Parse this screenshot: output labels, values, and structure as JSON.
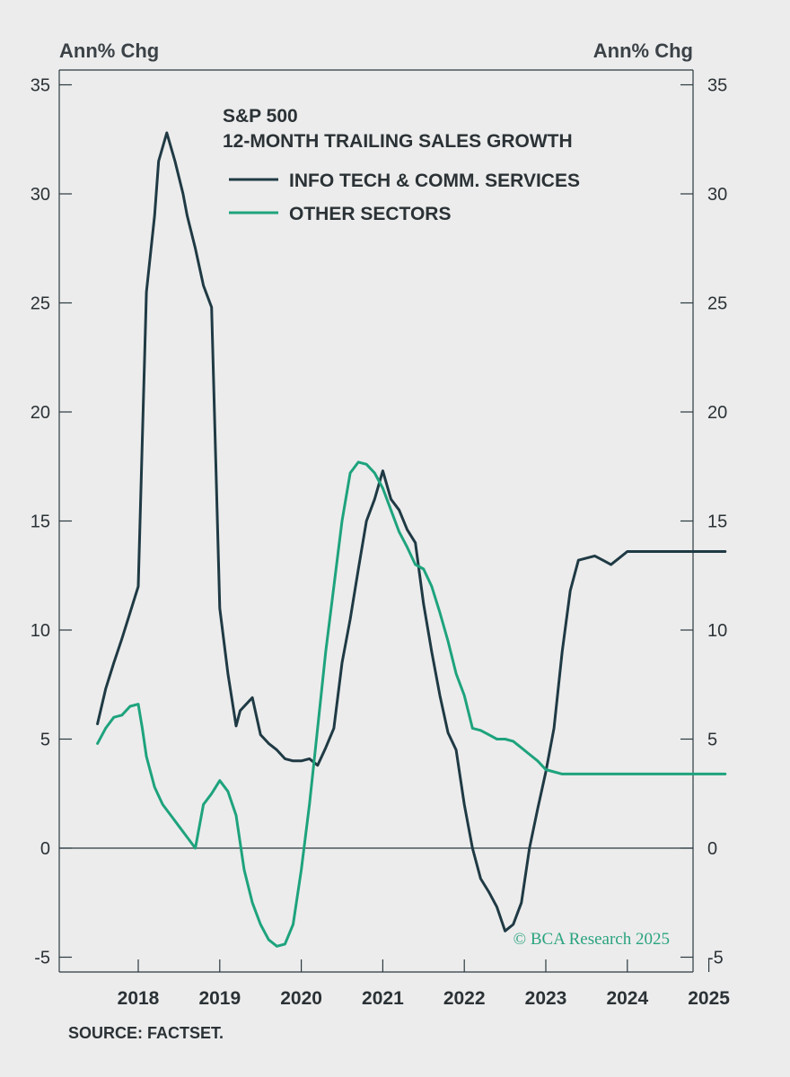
{
  "colors": {
    "background": "#ececec",
    "axis": "#2b3a40",
    "series_tech": "#1f3a44",
    "series_other": "#1ea37d"
  },
  "chart_data": {
    "type": "line",
    "title": "S&P 500",
    "subtitle": "12-MONTH TRAILING SALES GROWTH",
    "ylabel_left": "Ann% Chg",
    "ylabel_right": "Ann% Chg",
    "ylim": [
      -5,
      35
    ],
    "yticks": [
      -5,
      0,
      5,
      10,
      15,
      20,
      25,
      30,
      35
    ],
    "xlim": [
      2017.5,
      2025.5
    ],
    "xticks": [
      2018,
      2019,
      2020,
      2021,
      2022,
      2023,
      2024,
      2025
    ],
    "legend_position": "top-center",
    "source": "SOURCE: FACTSET.",
    "copyright": "© BCA Research 2025",
    "series": [
      {
        "name": "INFO TECH & COMM. SERVICES",
        "color": "#1f3a44",
        "x": [
          2017.5,
          2017.6,
          2017.7,
          2017.8,
          2017.9,
          2018.0,
          2018.1,
          2018.2,
          2018.25,
          2018.35,
          2018.45,
          2018.55,
          2018.6,
          2018.7,
          2018.8,
          2018.9,
          2019.0,
          2019.1,
          2019.2,
          2019.25,
          2019.3,
          2019.4,
          2019.5,
          2019.6,
          2019.7,
          2019.8,
          2019.9,
          2020.0,
          2020.1,
          2020.2,
          2020.3,
          2020.4,
          2020.5,
          2020.6,
          2020.7,
          2020.8,
          2020.9,
          2021.0,
          2021.1,
          2021.2,
          2021.3,
          2021.4,
          2021.5,
          2021.6,
          2021.7,
          2021.8,
          2021.9,
          2022.0,
          2022.1,
          2022.2,
          2022.3,
          2022.4,
          2022.5,
          2022.6,
          2022.7,
          2022.8,
          2022.9,
          2023.0,
          2023.1,
          2023.2,
          2023.3,
          2023.4,
          2023.5,
          2023.6,
          2023.7,
          2023.8,
          2023.9,
          2024.0,
          2024.1,
          2024.2,
          2024.3,
          2024.4,
          2024.5,
          2024.6,
          2024.7,
          2024.8,
          2024.9,
          2025.0,
          2025.1,
          2025.2
        ],
        "y": [
          5.7,
          7.3,
          8.5,
          9.6,
          10.8,
          12.0,
          25.5,
          29.0,
          31.5,
          32.8,
          31.5,
          30.0,
          29.0,
          27.5,
          25.8,
          24.8,
          11.0,
          8.0,
          5.6,
          6.3,
          6.5,
          6.9,
          5.2,
          4.8,
          4.5,
          4.1,
          4.0,
          4.0,
          4.1,
          3.8,
          4.6,
          5.5,
          8.5,
          10.5,
          12.8,
          15.0,
          16.0,
          17.3,
          16.0,
          15.5,
          14.6,
          14.0,
          11.2,
          9.0,
          7.0,
          5.3,
          4.5,
          2.0,
          0.0,
          -1.4,
          -2.0,
          -2.7,
          -3.8,
          -3.5,
          -2.5,
          0.0,
          1.8,
          3.5,
          5.5,
          9.0,
          11.8,
          13.2,
          13.3,
          13.4,
          13.2,
          13.0,
          13.3,
          13.6,
          13.6,
          13.6,
          13.6,
          13.6,
          13.6,
          13.6,
          13.6,
          13.6,
          13.6,
          13.6,
          13.6,
          13.6
        ]
      },
      {
        "name": "OTHER SECTORS",
        "color": "#1ea37d",
        "x": [
          2017.5,
          2017.6,
          2017.7,
          2017.8,
          2017.9,
          2018.0,
          2018.05,
          2018.1,
          2018.2,
          2018.3,
          2018.4,
          2018.5,
          2018.6,
          2018.7,
          2018.8,
          2018.9,
          2019.0,
          2019.1,
          2019.2,
          2019.3,
          2019.4,
          2019.5,
          2019.6,
          2019.7,
          2019.8,
          2019.9,
          2020.0,
          2020.1,
          2020.2,
          2020.3,
          2020.4,
          2020.5,
          2020.6,
          2020.7,
          2020.8,
          2020.9,
          2021.0,
          2021.1,
          2021.2,
          2021.3,
          2021.4,
          2021.5,
          2021.6,
          2021.7,
          2021.8,
          2021.9,
          2022.0,
          2022.1,
          2022.2,
          2022.3,
          2022.4,
          2022.5,
          2022.6,
          2022.7,
          2022.8,
          2022.9,
          2023.0,
          2023.1,
          2023.2,
          2023.3,
          2023.4,
          2023.5,
          2023.6,
          2023.7,
          2023.8,
          2023.9,
          2024.0,
          2024.1,
          2024.2,
          2024.3,
          2024.4,
          2024.5,
          2024.6,
          2024.7,
          2024.8,
          2024.9,
          2025.0,
          2025.1,
          2025.2
        ],
        "y": [
          4.8,
          5.5,
          6.0,
          6.1,
          6.5,
          6.6,
          5.5,
          4.2,
          2.8,
          2.0,
          1.5,
          1.0,
          0.5,
          0.0,
          2.0,
          2.5,
          3.1,
          2.6,
          1.5,
          -1.0,
          -2.5,
          -3.5,
          -4.2,
          -4.5,
          -4.4,
          -3.5,
          -1.0,
          2.0,
          5.5,
          9.0,
          12.0,
          15.0,
          17.2,
          17.7,
          17.6,
          17.2,
          16.5,
          15.5,
          14.5,
          13.8,
          13.0,
          12.8,
          12.0,
          10.8,
          9.5,
          8.0,
          7.0,
          5.5,
          5.4,
          5.2,
          5.0,
          5.0,
          4.9,
          4.6,
          4.3,
          4.0,
          3.6,
          3.5,
          3.4,
          3.4,
          3.4,
          3.4,
          3.4,
          3.4,
          3.4,
          3.4,
          3.4,
          3.4,
          3.4,
          3.4,
          3.4,
          3.4,
          3.4,
          3.4,
          3.4,
          3.4,
          3.4,
          3.4,
          3.4
        ]
      }
    ]
  }
}
